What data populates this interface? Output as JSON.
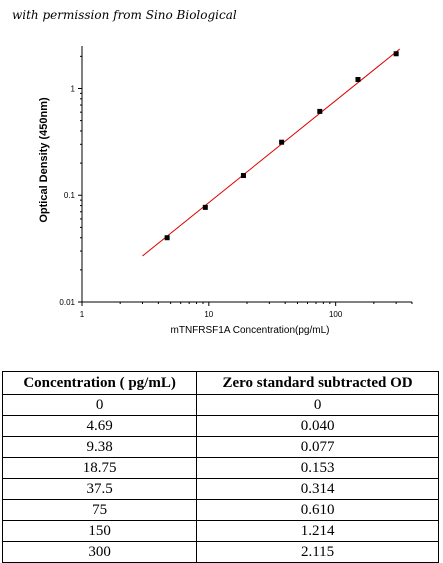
{
  "caption": "with permission from Sino Biological",
  "chart_data": {
    "type": "scatter",
    "x_scale": "log",
    "y_scale": "log",
    "xlabel": "mTNFRSF1A Concentration(pg/mL)",
    "ylabel": "Optical Density (450nm)",
    "xlim": [
      1,
      400
    ],
    "ylim": [
      0.01,
      2.5
    ],
    "x_ticks": [
      {
        "value": 1,
        "label": "1"
      },
      {
        "value": 10,
        "label": "10"
      },
      {
        "value": 100,
        "label": "100"
      }
    ],
    "y_ticks": [
      {
        "value": 0.01,
        "label": "0.01"
      },
      {
        "value": 0.1,
        "label": "0.1"
      },
      {
        "value": 1,
        "label": "1"
      }
    ],
    "points": {
      "x": [
        4.69,
        9.38,
        18.75,
        37.5,
        75,
        150,
        300
      ],
      "y": [
        0.04,
        0.077,
        0.153,
        0.314,
        0.61,
        1.214,
        2.115
      ]
    },
    "fit_line": {
      "x": [
        3,
        320
      ],
      "y": [
        0.027,
        2.34
      ]
    },
    "colors": {
      "points": "#000000",
      "fit_line": "#dd0000"
    }
  },
  "table": {
    "headers": [
      "Concentration ( pg/mL)",
      "Zero standard subtracted OD"
    ],
    "rows": [
      [
        "0",
        "0"
      ],
      [
        "4.69",
        "0.040"
      ],
      [
        "9.38",
        "0.077"
      ],
      [
        "18.75",
        "0.153"
      ],
      [
        "37.5",
        "0.314"
      ],
      [
        "75",
        "0.610"
      ],
      [
        "150",
        "1.214"
      ],
      [
        "300",
        "2.115"
      ]
    ]
  }
}
